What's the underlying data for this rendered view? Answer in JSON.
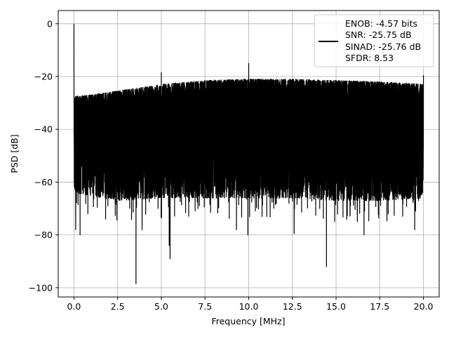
{
  "chart_data": {
    "type": "line",
    "title": "",
    "xlabel": "Frequency [MHz]",
    "ylabel": "PSD [dB]",
    "xlim": [
      -0.9,
      20.9
    ],
    "ylim": [
      -103.5,
      5
    ],
    "xticks": [
      0.0,
      2.5,
      5.0,
      7.5,
      10.0,
      12.5,
      15.0,
      17.5,
      20.0
    ],
    "xtick_labels": [
      "0.0",
      "2.5",
      "5.0",
      "7.5",
      "10.0",
      "12.5",
      "15.0",
      "17.5",
      "20.0"
    ],
    "yticks": [
      0,
      -20,
      -40,
      -60,
      -80,
      -100
    ],
    "ytick_labels": [
      "0",
      "−20",
      "−40",
      "−60",
      "−80",
      "−100"
    ],
    "grid": true,
    "line_color": "#000000",
    "legend": {
      "placement": "top-right",
      "entries": [
        "ENOB: -4.57 bits",
        "SNR: -25.75 dB",
        "SINAD: -25.76 dB",
        "SFDR: 8.53"
      ]
    },
    "series": [
      {
        "x_range": [
          0.0,
          20.0
        ],
        "description_points": {
          "peaks": [
            {
              "x": 0.0,
              "y": 0.0
            },
            {
              "x": 5.0,
              "y": -18.5
            },
            {
              "x": 10.0,
              "y": -15.0
            },
            {
              "x": 20.0,
              "y": -19.5
            }
          ],
          "upper_envelope": [
            {
              "x": 0.0,
              "y": -27.5
            },
            {
              "x": 1.0,
              "y": -27.0
            },
            {
              "x": 2.5,
              "y": -25.5
            },
            {
              "x": 5.0,
              "y": -23.0
            },
            {
              "x": 7.5,
              "y": -21.5
            },
            {
              "x": 10.0,
              "y": -21.0
            },
            {
              "x": 12.5,
              "y": -21.0
            },
            {
              "x": 15.0,
              "y": -21.5
            },
            {
              "x": 17.5,
              "y": -22.0
            },
            {
              "x": 20.0,
              "y": -23.0
            }
          ],
          "lower_envelope": [
            {
              "x": 0.0,
              "y": -64.0
            },
            {
              "x": 2.5,
              "y": -67.0
            },
            {
              "x": 5.0,
              "y": -66.0
            },
            {
              "x": 7.5,
              "y": -66.0
            },
            {
              "x": 10.0,
              "y": -66.0
            },
            {
              "x": 12.5,
              "y": -66.0
            },
            {
              "x": 15.0,
              "y": -67.0
            },
            {
              "x": 17.5,
              "y": -67.0
            },
            {
              "x": 20.0,
              "y": -66.0
            }
          ],
          "deep_nulls": [
            {
              "x": 0.1,
              "y": -78.0
            },
            {
              "x": 0.35,
              "y": -80.0
            },
            {
              "x": 3.55,
              "y": -98.5
            },
            {
              "x": 3.9,
              "y": -78.0
            },
            {
              "x": 5.45,
              "y": -84.0
            },
            {
              "x": 5.5,
              "y": -89.0
            },
            {
              "x": 9.3,
              "y": -78.0
            },
            {
              "x": 9.95,
              "y": -80.0
            },
            {
              "x": 12.6,
              "y": -79.5
            },
            {
              "x": 14.45,
              "y": -92.0
            },
            {
              "x": 16.6,
              "y": -80.0
            },
            {
              "x": 19.5,
              "y": -78.0
            }
          ]
        }
      }
    ]
  }
}
